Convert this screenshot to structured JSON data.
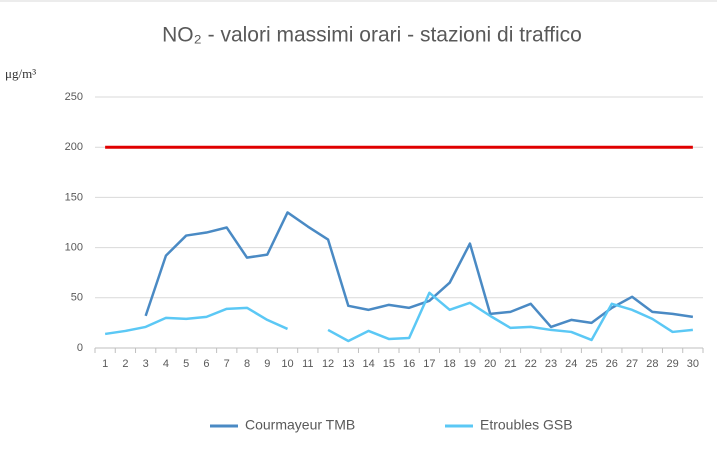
{
  "chart_data": {
    "type": "line",
    "title": "NO₂ - valori massimi orari - stazioni di traffico",
    "y_label": "μg/m³",
    "categories": [
      "1",
      "2",
      "3",
      "4",
      "5",
      "6",
      "7",
      "8",
      "9",
      "10",
      "11",
      "12",
      "13",
      "14",
      "15",
      "16",
      "17",
      "18",
      "19",
      "20",
      "21",
      "22",
      "23",
      "24",
      "25",
      "26",
      "27",
      "28",
      "29",
      "30"
    ],
    "series": [
      {
        "name": "Courmayeur TMB",
        "color": "#4a8ac4",
        "values": [
          null,
          null,
          32,
          92,
          112,
          115,
          120,
          90,
          93,
          135,
          121,
          108,
          42,
          38,
          43,
          40,
          47,
          65,
          104,
          34,
          36,
          44,
          21,
          28,
          25,
          40,
          51,
          36,
          34,
          31
        ]
      },
      {
        "name": "Etroubles GSB",
        "color": "#5bc8f5",
        "values": [
          14,
          17,
          21,
          30,
          29,
          31,
          39,
          40,
          28,
          19,
          null,
          18,
          7,
          17,
          9,
          10,
          55,
          38,
          45,
          32,
          20,
          21,
          18,
          16,
          8,
          44,
          38,
          29,
          16,
          18
        ]
      }
    ],
    "threshold": 200,
    "threshold_color": "#e00000",
    "ylim": [
      0,
      250
    ],
    "yticks": [
      0,
      50,
      100,
      150,
      200,
      250
    ],
    "grid": true,
    "legend": "bottom"
  }
}
